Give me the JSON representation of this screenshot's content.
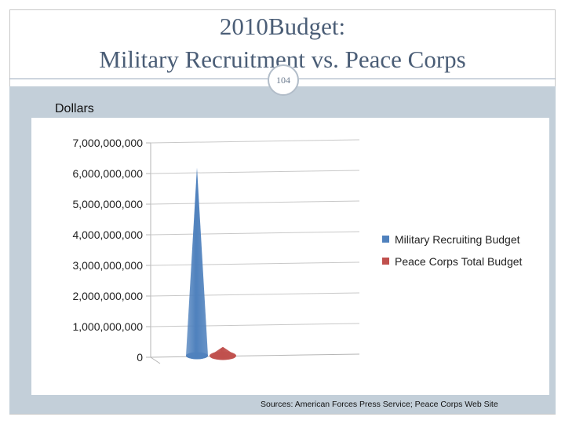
{
  "slide": {
    "title_line1": "2010Budget:",
    "title_line2": "Military Recruitment vs. Peace Corps",
    "slide_number": "104",
    "source_note": "Sources: American Forces Press Service; Peace Corps Web Site"
  },
  "colors": {
    "title": "#4a5d76",
    "band": "#c3cfd9",
    "series_military": "#4f81bd",
    "series_peace_corps": "#c0504d"
  },
  "chart_data": {
    "type": "bar",
    "style": "3d-cone",
    "ylabel": "Dollars",
    "ylim": [
      0,
      7000000000
    ],
    "yticks": [
      "0",
      "1,000,000,000",
      "2,000,000,000",
      "3,000,000,000",
      "4,000,000,000",
      "5,000,000,000",
      "6,000,000,000",
      "7,000,000,000"
    ],
    "grid": true,
    "legend_position": "right",
    "series": [
      {
        "name": "Military Recruiting Budget",
        "values": [
          6200000000
        ]
      },
      {
        "name": "Peace Corps Total Budget",
        "values": [
          340000000
        ]
      }
    ]
  }
}
